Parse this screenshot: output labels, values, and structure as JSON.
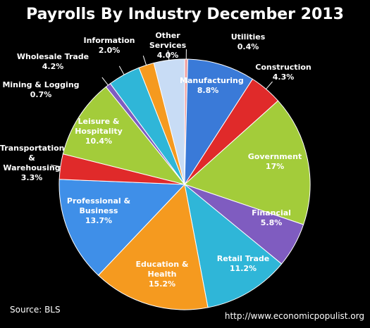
{
  "chart_data": {
    "type": "pie",
    "title": "Payrolls By Industry December 2013",
    "categories": [
      "Utilities",
      "Manufacturing",
      "Construction",
      "Government",
      "Financial",
      "Retail Trade",
      "Education & Health",
      "Professional & Business",
      "Transportation & Warehousing",
      "Leisure & Hospitality",
      "Mining & Logging",
      "Wholesale Trade",
      "Information",
      "Other Services"
    ],
    "values": [
      0.4,
      8.8,
      4.3,
      17,
      5.8,
      11.2,
      15.2,
      13.7,
      3.3,
      10.4,
      0.7,
      4.2,
      2.0,
      4.0
    ],
    "value_labels": [
      "0.4%",
      "8.8%",
      "4.3%",
      "17%",
      "5.8%",
      "11.2%",
      "15.2%",
      "13.7%",
      "3.3%",
      "10.4%",
      "0.7%",
      "4.2%",
      "2.0%",
      "4.0%"
    ],
    "colors": [
      "#f0a0a0",
      "#3a7ad8",
      "#e02a2a",
      "#a3cc3a",
      "#7f5cc0",
      "#2fb6d8",
      "#f59a1f",
      "#3f8fe8",
      "#e02a2a",
      "#a3cc3a",
      "#7f5cc0",
      "#2fb6d8",
      "#f59a1f",
      "#c8dcf5"
    ],
    "source": "Source:  BLS",
    "credit": "http://www.economicpopulist.org"
  }
}
